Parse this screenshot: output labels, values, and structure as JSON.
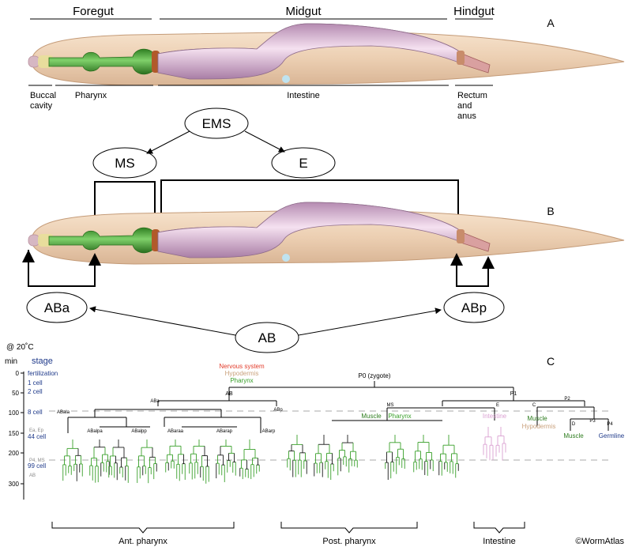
{
  "panel_a": {
    "letter": "A",
    "regions": {
      "foregut": "Foregut",
      "midgut": "Midgut",
      "hindgut": "Hindgut"
    },
    "parts": {
      "buccal_1": "Buccal",
      "buccal_2": "cavity",
      "pharynx": "Pharynx",
      "intestine": "Intestine",
      "rectum_1": "Rectum",
      "rectum_2": "and",
      "rectum_3": "anus"
    }
  },
  "lineage_bubbles": {
    "ems": "EMS",
    "ms": "MS",
    "e": "E",
    "aba": "ABa",
    "abp": "ABp",
    "ab": "AB"
  },
  "panel_b": {
    "letter": "B"
  },
  "panel_c": {
    "letter": "C",
    "temperature": "@ 20˚C",
    "axis_min": "min",
    "axis_stage": "stage",
    "ticks": [
      "0",
      "50",
      "100",
      "150",
      "200",
      "300"
    ],
    "stages": [
      "fertilization",
      "1 cell",
      "2 cell",
      "8 cell",
      "44 cell",
      "99 cell"
    ],
    "stage_notes": [
      "Ea, Ep",
      "P4, MS",
      "AB"
    ],
    "legend": {
      "nervous": "Nervous system",
      "hypodermis": "Hypodermis",
      "pharynx": "Pharynx"
    },
    "nodes": {
      "p0": "P0 (zygote)",
      "ab": "AB",
      "p1": "P1",
      "aba": "ABa",
      "abp": "ABp",
      "ms": "MS",
      "e": "E",
      "p2": "P2",
      "c": "C",
      "d": "D",
      "p3": "P3",
      "p4": "P4",
      "abala": "ABala",
      "abalpa": "ABalpa",
      "abalpp": "ABalpp",
      "abaraa": "ABaraa",
      "abarap": "ABarap",
      "abarp": "ABarp"
    },
    "fates": {
      "ms_muscle": "Muscle",
      "ms_pharynx": "Pharynx",
      "e_intestine": "Intestine",
      "c_muscle": "Muscle",
      "c_hypodermis": "Hypodermis",
      "d_muscle": "Muscle",
      "germline": "Germline"
    },
    "groups": {
      "ant_pharynx": "Ant. pharynx",
      "post_pharynx": "Post. pharynx",
      "intestine": "Intestine"
    },
    "copyright": "©WormAtlas"
  },
  "colors": {
    "body": "#f0d4b8",
    "pharynx": "#3e9a2a",
    "intestine": "#e6c2dc",
    "stage_blue": "#1f3a8a",
    "nervous_red": "#e23b2a",
    "hypodermis_tan": "#c9a17c",
    "lineage_green": "#39a02a",
    "intestine_pink": "#dba1d2"
  }
}
